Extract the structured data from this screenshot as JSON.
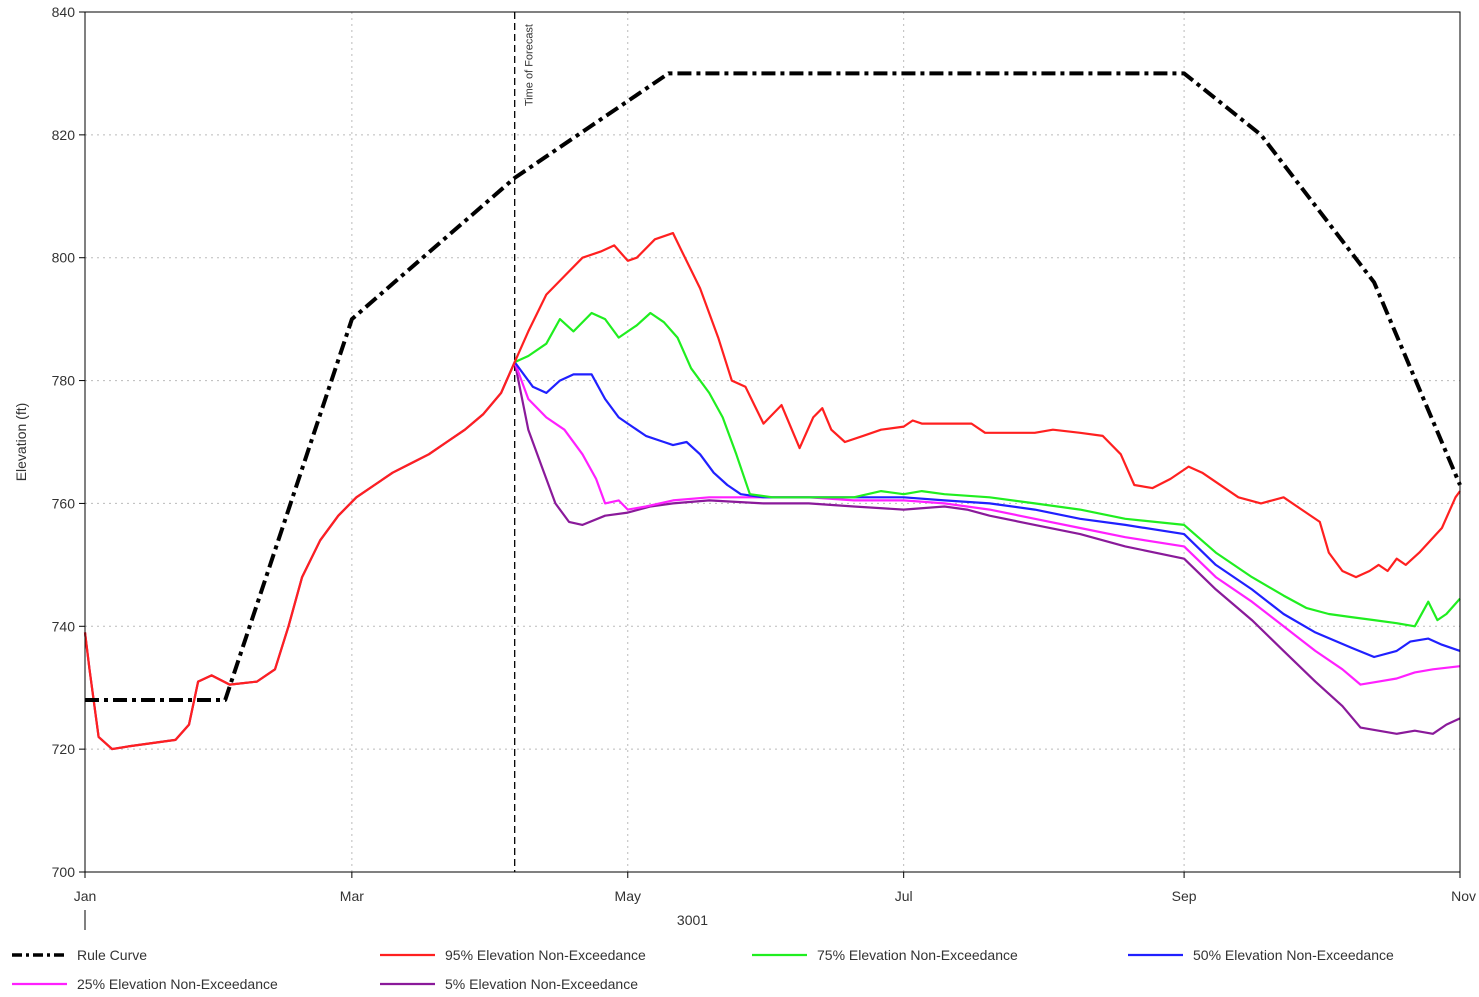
{
  "chart_data": {
    "type": "line",
    "title": "",
    "xlabel": "3001",
    "ylabel": "Elevation (ft)",
    "ylim": [
      700,
      840
    ],
    "xlim": [
      0,
      304
    ],
    "y_ticks": [
      700,
      720,
      740,
      760,
      780,
      800,
      820,
      840
    ],
    "x_ticks": [
      {
        "label": "Jan",
        "day": 0
      },
      {
        "label": "Mar",
        "day": 59
      },
      {
        "label": "May",
        "day": 120
      },
      {
        "label": "Jul",
        "day": 181
      },
      {
        "label": "Sep",
        "day": 243
      },
      {
        "label": "Nov",
        "day": 304
      }
    ],
    "grid": true,
    "annotation": {
      "label": "Time of Forecast",
      "day": 95
    },
    "legend_position": "bottom",
    "series": [
      {
        "name": "Rule Curve",
        "color": "#000000",
        "style": "dashdot",
        "points": [
          [
            0,
            728
          ],
          [
            31,
            728
          ],
          [
            59,
            790
          ],
          [
            95,
            813
          ],
          [
            129,
            830
          ],
          [
            243,
            830
          ],
          [
            260,
            820
          ],
          [
            285,
            796
          ],
          [
            304,
            763
          ]
        ]
      },
      {
        "name": "95% Elevation Non-Exceedance",
        "color": "#ff2020",
        "style": "solid",
        "points": [
          [
            0,
            739
          ],
          [
            1,
            733
          ],
          [
            3,
            722
          ],
          [
            6,
            720
          ],
          [
            10,
            720.5
          ],
          [
            15,
            721
          ],
          [
            20,
            721.5
          ],
          [
            23,
            724
          ],
          [
            25,
            731
          ],
          [
            28,
            732
          ],
          [
            32,
            730.5
          ],
          [
            38,
            731
          ],
          [
            42,
            733
          ],
          [
            45,
            740
          ],
          [
            48,
            748
          ],
          [
            52,
            754
          ],
          [
            56,
            758
          ],
          [
            60,
            761
          ],
          [
            64,
            763
          ],
          [
            68,
            765
          ],
          [
            72,
            766.5
          ],
          [
            76,
            768
          ],
          [
            80,
            770
          ],
          [
            84,
            772
          ],
          [
            88,
            774.5
          ],
          [
            92,
            778
          ],
          [
            95,
            783
          ],
          [
            98,
            788
          ],
          [
            102,
            794
          ],
          [
            106,
            797
          ],
          [
            110,
            800
          ],
          [
            114,
            801
          ],
          [
            117,
            802
          ],
          [
            120,
            799.5
          ],
          [
            122,
            800
          ],
          [
            126,
            803
          ],
          [
            130,
            804
          ],
          [
            132,
            801
          ],
          [
            136,
            795
          ],
          [
            140,
            787
          ],
          [
            143,
            780
          ],
          [
            146,
            779
          ],
          [
            148,
            776
          ],
          [
            150,
            773
          ],
          [
            154,
            776
          ],
          [
            158,
            769
          ],
          [
            161,
            774
          ],
          [
            163,
            775.5
          ],
          [
            165,
            772
          ],
          [
            168,
            770
          ],
          [
            172,
            771
          ],
          [
            176,
            772
          ],
          [
            181,
            772.5
          ],
          [
            183,
            773.5
          ],
          [
            185,
            773
          ],
          [
            190,
            773
          ],
          [
            196,
            773
          ],
          [
            199,
            771.5
          ],
          [
            205,
            771.5
          ],
          [
            210,
            771.5
          ],
          [
            214,
            772
          ],
          [
            220,
            771.5
          ],
          [
            225,
            771
          ],
          [
            229,
            768
          ],
          [
            232,
            763
          ],
          [
            236,
            762.5
          ],
          [
            240,
            764
          ],
          [
            244,
            766
          ],
          [
            247,
            765
          ],
          [
            255,
            761
          ],
          [
            260,
            760
          ],
          [
            265,
            761
          ],
          [
            269,
            759
          ],
          [
            273,
            757
          ],
          [
            275,
            752
          ],
          [
            278,
            749
          ],
          [
            281,
            748
          ],
          [
            284,
            749
          ],
          [
            286,
            750
          ],
          [
            288,
            749
          ],
          [
            290,
            751
          ],
          [
            292,
            750
          ],
          [
            295,
            752
          ],
          [
            300,
            756
          ],
          [
            303,
            761
          ],
          [
            304,
            762
          ]
        ]
      },
      {
        "name": "75% Elevation Non-Exceedance",
        "color": "#20ee20",
        "style": "solid",
        "points": [
          [
            95,
            783
          ],
          [
            98,
            784
          ],
          [
            102,
            786
          ],
          [
            105,
            790
          ],
          [
            108,
            788
          ],
          [
            112,
            791
          ],
          [
            115,
            790
          ],
          [
            118,
            787
          ],
          [
            122,
            789
          ],
          [
            125,
            791
          ],
          [
            128,
            789.5
          ],
          [
            131,
            787
          ],
          [
            134,
            782
          ],
          [
            138,
            778
          ],
          [
            141,
            774
          ],
          [
            144,
            768
          ],
          [
            147,
            761.5
          ],
          [
            152,
            761
          ],
          [
            160,
            761
          ],
          [
            170,
            761
          ],
          [
            176,
            762
          ],
          [
            181,
            761.5
          ],
          [
            185,
            762
          ],
          [
            190,
            761.5
          ],
          [
            200,
            761
          ],
          [
            210,
            760
          ],
          [
            220,
            759
          ],
          [
            230,
            757.5
          ],
          [
            243,
            756.5
          ],
          [
            250,
            752
          ],
          [
            258,
            748
          ],
          [
            265,
            745
          ],
          [
            270,
            743
          ],
          [
            275,
            742
          ],
          [
            280,
            741.5
          ],
          [
            285,
            741
          ],
          [
            290,
            740.5
          ],
          [
            294,
            740
          ],
          [
            297,
            744
          ],
          [
            299,
            741
          ],
          [
            301,
            742
          ],
          [
            304,
            744.5
          ]
        ]
      },
      {
        "name": "50% Elevation Non-Exceedance",
        "color": "#2020ff",
        "style": "solid",
        "points": [
          [
            95,
            783
          ],
          [
            99,
            779
          ],
          [
            102,
            778
          ],
          [
            105,
            780
          ],
          [
            108,
            781
          ],
          [
            112,
            781
          ],
          [
            115,
            777
          ],
          [
            118,
            774
          ],
          [
            120,
            773
          ],
          [
            124,
            771
          ],
          [
            128,
            770
          ],
          [
            130,
            769.5
          ],
          [
            133,
            770
          ],
          [
            136,
            768
          ],
          [
            139,
            765
          ],
          [
            142,
            763
          ],
          [
            145,
            761.5
          ],
          [
            150,
            761
          ],
          [
            160,
            761
          ],
          [
            170,
            761
          ],
          [
            181,
            761
          ],
          [
            190,
            760.5
          ],
          [
            200,
            760
          ],
          [
            210,
            759
          ],
          [
            220,
            757.5
          ],
          [
            230,
            756.5
          ],
          [
            243,
            755
          ],
          [
            250,
            750
          ],
          [
            258,
            746
          ],
          [
            265,
            742
          ],
          [
            272,
            739
          ],
          [
            280,
            736.5
          ],
          [
            285,
            735
          ],
          [
            290,
            736
          ],
          [
            293,
            737.5
          ],
          [
            297,
            738
          ],
          [
            300,
            737
          ],
          [
            304,
            736
          ]
        ]
      },
      {
        "name": "25% Elevation Non-Exceedance",
        "color": "#ff20ff",
        "style": "solid",
        "points": [
          [
            95,
            783
          ],
          [
            98,
            777
          ],
          [
            102,
            774
          ],
          [
            106,
            772
          ],
          [
            110,
            768
          ],
          [
            113,
            764
          ],
          [
            115,
            760
          ],
          [
            118,
            760.5
          ],
          [
            120,
            759
          ],
          [
            124,
            759.5
          ],
          [
            130,
            760.5
          ],
          [
            138,
            761
          ],
          [
            150,
            761
          ],
          [
            160,
            761
          ],
          [
            170,
            760.5
          ],
          [
            181,
            760.5
          ],
          [
            190,
            760
          ],
          [
            200,
            759
          ],
          [
            210,
            757.5
          ],
          [
            220,
            756
          ],
          [
            230,
            754.5
          ],
          [
            243,
            753
          ],
          [
            250,
            748
          ],
          [
            258,
            744
          ],
          [
            265,
            740
          ],
          [
            272,
            736
          ],
          [
            278,
            733
          ],
          [
            282,
            730.5
          ],
          [
            286,
            731
          ],
          [
            290,
            731.5
          ],
          [
            294,
            732.5
          ],
          [
            298,
            733
          ],
          [
            304,
            733.5
          ]
        ]
      },
      {
        "name": "5% Elevation Non-Exceedance",
        "color": "#8a1a9a",
        "style": "solid",
        "points": [
          [
            0,
            739
          ],
          [
            1,
            733
          ],
          [
            3,
            722
          ],
          [
            6,
            720
          ],
          [
            10,
            720.5
          ],
          [
            15,
            721
          ],
          [
            20,
            721.5
          ],
          [
            23,
            724
          ],
          [
            25,
            731
          ],
          [
            28,
            732
          ],
          [
            32,
            730.5
          ],
          [
            38,
            731
          ],
          [
            42,
            733
          ],
          [
            45,
            740
          ],
          [
            48,
            748
          ],
          [
            52,
            754
          ],
          [
            56,
            758
          ],
          [
            60,
            761
          ],
          [
            64,
            763
          ],
          [
            68,
            765
          ],
          [
            72,
            766.5
          ],
          [
            76,
            768
          ],
          [
            80,
            770
          ],
          [
            84,
            772
          ],
          [
            88,
            774.5
          ],
          [
            92,
            778
          ],
          [
            95,
            783
          ],
          [
            98,
            772
          ],
          [
            101,
            766
          ],
          [
            104,
            760
          ],
          [
            107,
            757
          ],
          [
            110,
            756.5
          ],
          [
            115,
            758
          ],
          [
            120,
            758.5
          ],
          [
            125,
            759.5
          ],
          [
            130,
            760
          ],
          [
            138,
            760.5
          ],
          [
            150,
            760
          ],
          [
            160,
            760
          ],
          [
            170,
            759.5
          ],
          [
            181,
            759
          ],
          [
            190,
            759.5
          ],
          [
            195,
            759
          ],
          [
            200,
            758
          ],
          [
            210,
            756.5
          ],
          [
            220,
            755
          ],
          [
            230,
            753
          ],
          [
            243,
            751
          ],
          [
            250,
            746
          ],
          [
            258,
            741
          ],
          [
            265,
            736
          ],
          [
            272,
            731
          ],
          [
            278,
            727
          ],
          [
            282,
            723.5
          ],
          [
            286,
            723
          ],
          [
            290,
            722.5
          ],
          [
            294,
            723
          ],
          [
            298,
            722.5
          ],
          [
            301,
            724
          ],
          [
            304,
            725
          ]
        ]
      }
    ]
  }
}
